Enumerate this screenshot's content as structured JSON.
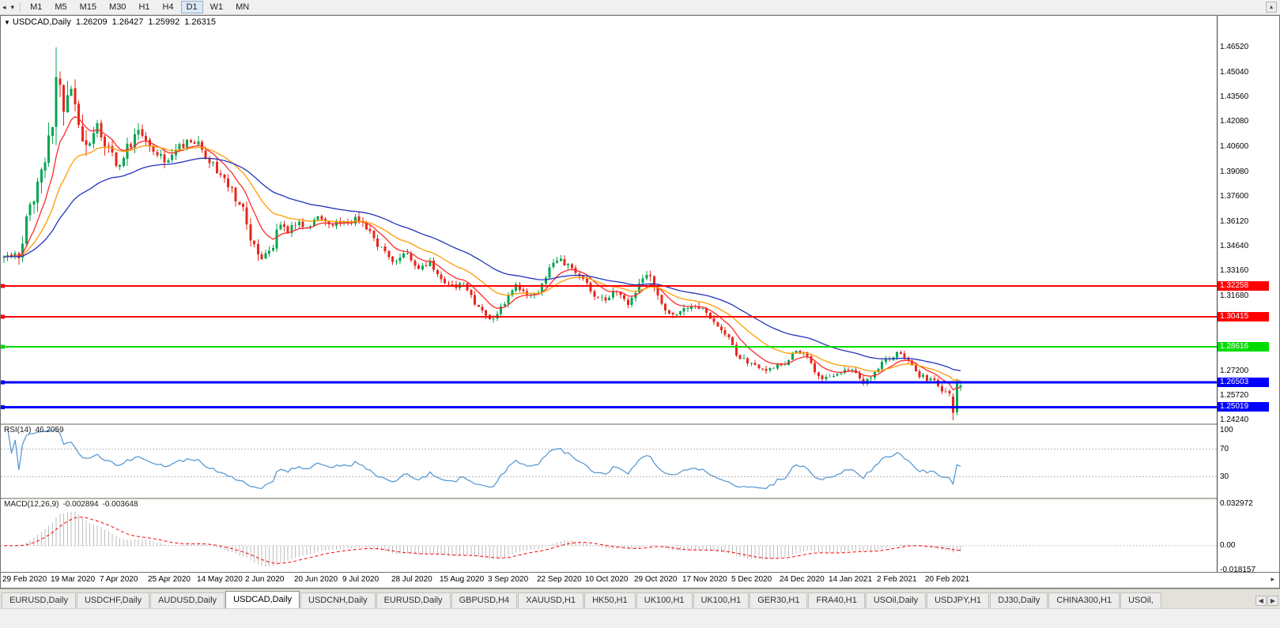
{
  "icons": {
    "toolbar_charts": "◂",
    "toolbar_caret": "▾",
    "toolbar_collapse": "▴",
    "title_marker": "▼",
    "tab_scroll_left": "◀",
    "tab_scroll_right": "▶",
    "axis_arrow": "▸"
  },
  "toolbar": {
    "timeframes": [
      "M1",
      "M5",
      "M15",
      "M30",
      "H1",
      "H4",
      "D1",
      "W1",
      "MN"
    ],
    "active": "D1"
  },
  "chart": {
    "symbol_title": "USDCAD,Daily",
    "ohlc": {
      "open": "1.26209",
      "high": "1.26427",
      "low": "1.25992",
      "close": "1.26315"
    },
    "rsi_title": "RSI(14)",
    "rsi_value": "46.2059",
    "macd_title": "MACD(12,26,9)",
    "macd_value": "-0.002894",
    "macd_signal_value": "-0.003648"
  },
  "tabs": {
    "items": [
      "EURUSD,Daily",
      "USDCHF,Daily",
      "AUDUSD,Daily",
      "USDCAD,Daily",
      "USDCNH,Daily",
      "EURUSD,Daily",
      "GBPUSD,H4",
      "XAUUSD,H1",
      "HK50,H1",
      "UK100,H1",
      "UK100,H1",
      "GER30,H1",
      "FRA40,H1",
      "USOil,Daily",
      "USDJPY,H1",
      "DJ30,Daily",
      "CHINA300,H1",
      "USOil,"
    ],
    "active_index": 3
  },
  "chart_data": {
    "type": "candlestick",
    "symbol": "USDCAD",
    "period": "Daily",
    "current_quote": {
      "open": 1.26209,
      "high": 1.26427,
      "low": 1.25992,
      "close": 1.26315
    },
    "y_axis": {
      "min": 1.2405,
      "max": 1.484,
      "ticks": [
        "1.46520",
        "1.45040",
        "1.43560",
        "1.42080",
        "1.40600",
        "1.39080",
        "1.37600",
        "1.36120",
        "1.34640",
        "1.33160",
        "1.31680",
        "1.27200",
        "1.25720",
        "1.24240"
      ]
    },
    "x_axis": {
      "labels": [
        "29 Feb 2020",
        "19 Mar 2020",
        "7 Apr 2020",
        "25 Apr 2020",
        "14 May 2020",
        "2 Jun 2020",
        "20 Jun 2020",
        "9 Jul 2020",
        "28 Jul 2020",
        "15 Aug 2020",
        "3 Sep 2020",
        "22 Sep 2020",
        "10 Oct 2020",
        "29 Oct 2020",
        "17 Nov 2020",
        "5 Dec 2020",
        "24 Dec 2020",
        "14 Jan 2021",
        "2 Feb 2021",
        "20 Feb 2021"
      ],
      "tick_indices": [
        0,
        13,
        26,
        39,
        52,
        65,
        78,
        91,
        104,
        117,
        130,
        143,
        156,
        169,
        182,
        195,
        208,
        221,
        234,
        247
      ],
      "candle_count": 257
    },
    "levels": [
      {
        "value": 1.32258,
        "label": "1.32258",
        "color": "#FF0000",
        "width": 2
      },
      {
        "value": 1.30415,
        "label": "1.30415",
        "color": "#FF0000",
        "width": 2
      },
      {
        "value": 1.28616,
        "label": "1.28616",
        "color": "#00DC00",
        "width": 2
      },
      {
        "value": 1.26503,
        "label": "1.26503",
        "color": "#0000FF",
        "width": 3
      },
      {
        "value": 1.25019,
        "label": "1.25019",
        "color": "#0000FF",
        "width": 3
      }
    ],
    "moving_averages": [
      {
        "period": 9,
        "color": "#FF2A2A"
      },
      {
        "period": 21,
        "color": "#FF9C00"
      },
      {
        "period": 45,
        "color": "#2233BB"
      }
    ],
    "rsi": {
      "period": 14,
      "current": 46.2059,
      "levels": [
        70,
        30
      ],
      "axis_ticks": [
        {
          "v": 100,
          "label": "100"
        },
        {
          "v": 70,
          "label": "70"
        },
        {
          "v": 30,
          "label": "30"
        }
      ],
      "scale": {
        "min": 0,
        "max": 105
      },
      "color": "#4F93D1"
    },
    "macd": {
      "fast": 12,
      "slow": 26,
      "signal": 9,
      "current": -0.002894,
      "signal_current": -0.003648,
      "axis_ticks": [
        {
          "v": 0.032972,
          "label": "0.032972"
        },
        {
          "v": 0,
          "label": "0.00"
        },
        {
          "v": -0.018157,
          "label": "-0.018157"
        }
      ],
      "scale": {
        "min": -0.0195,
        "max": 0.0345
      },
      "hist_color": "#BDBDBD",
      "signal_color": "#FF0000"
    },
    "candle_colors": {
      "up": "#00A651",
      "down": "#E8271C"
    },
    "anchors": [
      [
        0,
        1.339,
        0.007
      ],
      [
        4,
        1.342,
        0.008
      ],
      [
        6,
        1.36,
        0.011
      ],
      [
        8,
        1.3755,
        0.013
      ],
      [
        10,
        1.393,
        0.017
      ],
      [
        12,
        1.409,
        0.021
      ],
      [
        14,
        1.444,
        0.024
      ],
      [
        16,
        1.429,
        0.021
      ],
      [
        18,
        1.443,
        0.018
      ],
      [
        20,
        1.414,
        0.016
      ],
      [
        22,
        1.403,
        0.014
      ],
      [
        24,
        1.419,
        0.013
      ],
      [
        27,
        1.409,
        0.011
      ],
      [
        30,
        1.393,
        0.01
      ],
      [
        33,
        1.404,
        0.009
      ],
      [
        36,
        1.417,
        0.009
      ],
      [
        39,
        1.408,
        0.008
      ],
      [
        43,
        1.399,
        0.008
      ],
      [
        47,
        1.406,
        0.007
      ],
      [
        52,
        1.409,
        0.007
      ],
      [
        55,
        1.397,
        0.007
      ],
      [
        58,
        1.39,
        0.006
      ],
      [
        61,
        1.379,
        0.006
      ],
      [
        64,
        1.368,
        0.007
      ],
      [
        66,
        1.352,
        0.008
      ],
      [
        68,
        1.3435,
        0.008
      ],
      [
        70,
        1.339,
        0.008
      ],
      [
        72,
        1.348,
        0.008
      ],
      [
        74,
        1.359,
        0.007
      ],
      [
        76,
        1.355,
        0.006
      ],
      [
        78,
        1.36,
        0.006
      ],
      [
        81,
        1.356,
        0.006
      ],
      [
        84,
        1.364,
        0.006
      ],
      [
        87,
        1.359,
        0.005
      ],
      [
        91,
        1.36,
        0.005
      ],
      [
        94,
        1.362,
        0.005
      ],
      [
        97,
        1.357,
        0.005
      ],
      [
        100,
        1.347,
        0.005
      ],
      [
        103,
        1.341,
        0.005
      ],
      [
        105,
        1.3365,
        0.005
      ],
      [
        108,
        1.3415,
        0.006
      ],
      [
        111,
        1.333,
        0.005
      ],
      [
        114,
        1.337,
        0.005
      ],
      [
        117,
        1.327,
        0.005
      ],
      [
        120,
        1.3215,
        0.005
      ],
      [
        123,
        1.323,
        0.005
      ],
      [
        126,
        1.312,
        0.005
      ],
      [
        129,
        1.306,
        0.005
      ],
      [
        131,
        1.303,
        0.006
      ],
      [
        134,
        1.313,
        0.005
      ],
      [
        137,
        1.322,
        0.005
      ],
      [
        140,
        1.316,
        0.005
      ],
      [
        143,
        1.32,
        0.005
      ],
      [
        146,
        1.333,
        0.005
      ],
      [
        149,
        1.339,
        0.005
      ],
      [
        152,
        1.332,
        0.005
      ],
      [
        155,
        1.326,
        0.005
      ],
      [
        158,
        1.318,
        0.005
      ],
      [
        161,
        1.314,
        0.005
      ],
      [
        164,
        1.32,
        0.005
      ],
      [
        167,
        1.313,
        0.005
      ],
      [
        170,
        1.323,
        0.006
      ],
      [
        172,
        1.331,
        0.006
      ],
      [
        175,
        1.317,
        0.006
      ],
      [
        178,
        1.307,
        0.006
      ],
      [
        181,
        1.308,
        0.005
      ],
      [
        184,
        1.309,
        0.005
      ],
      [
        187,
        1.31,
        0.005
      ],
      [
        190,
        1.302,
        0.004
      ],
      [
        193,
        1.295,
        0.004
      ],
      [
        197,
        1.279,
        0.005
      ],
      [
        200,
        1.277,
        0.004
      ],
      [
        203,
        1.272,
        0.004
      ],
      [
        206,
        1.274,
        0.004
      ],
      [
        209,
        1.277,
        0.004
      ],
      [
        212,
        1.285,
        0.004
      ],
      [
        215,
        1.28,
        0.004
      ],
      [
        218,
        1.268,
        0.005
      ],
      [
        221,
        1.269,
        0.004
      ],
      [
        224,
        1.272,
        0.004
      ],
      [
        227,
        1.273,
        0.004
      ],
      [
        230,
        1.264,
        0.004
      ],
      [
        233,
        1.27,
        0.004
      ],
      [
        236,
        1.279,
        0.004
      ],
      [
        239,
        1.282,
        0.004
      ],
      [
        242,
        1.278,
        0.004
      ],
      [
        245,
        1.269,
        0.004
      ],
      [
        248,
        1.267,
        0.004
      ],
      [
        251,
        1.261,
        0.004
      ],
      [
        253,
        1.259,
        0.004
      ],
      [
        254,
        1.2468,
        0.006
      ],
      [
        255,
        1.2655,
        0.005
      ],
      [
        256,
        1.26315,
        0.003
      ]
    ],
    "pins": [
      {
        "i": 14,
        "h": 1.4652
      },
      {
        "i": 254,
        "o": 1.2566,
        "h": 1.2584,
        "l": 1.2425,
        "c": 1.2468
      },
      {
        "i": 255,
        "o": 1.247,
        "h": 1.2672,
        "l": 1.2452,
        "c": 1.2655
      },
      {
        "i": 256,
        "o": 1.26209,
        "h": 1.26427,
        "l": 1.25992,
        "c": 1.26315
      }
    ]
  }
}
